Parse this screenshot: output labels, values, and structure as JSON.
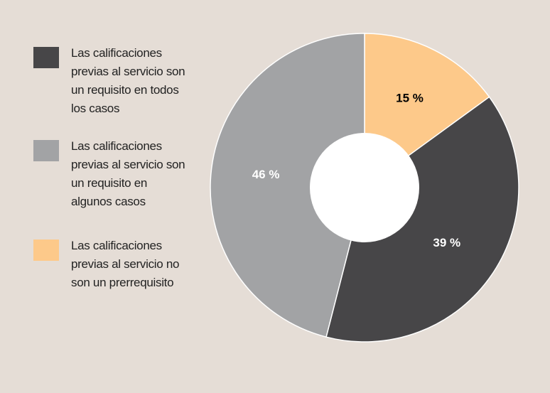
{
  "chart_data": {
    "type": "pie",
    "categories": [
      "Las calificaciones previas al servicio son un requisito en todos los casos",
      "Las calificaciones previas al servicio son un requisito en algunos casos",
      "Las calificaciones previas al servicio no son un prerrequisito"
    ],
    "values": [
      39,
      46,
      15
    ],
    "value_labels": [
      "39 %",
      "46 %",
      "15 %"
    ],
    "colors": [
      "#474648",
      "#a2a3a5",
      "#fdc98a"
    ],
    "label_colors": [
      "#ffffff",
      "#ffffff",
      "#000000"
    ],
    "donut": true
  }
}
